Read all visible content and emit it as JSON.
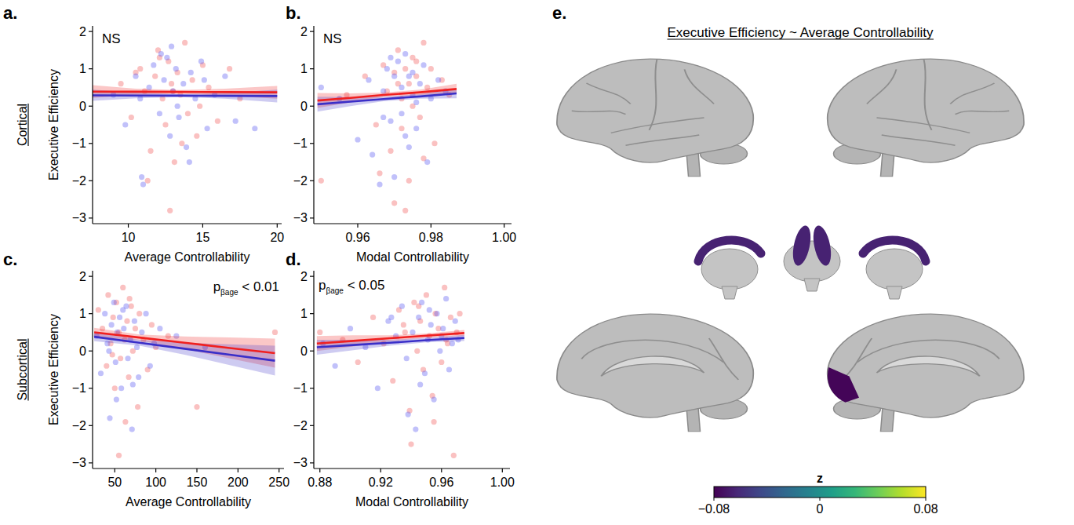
{
  "chart_data": [
    {
      "type": "scatter",
      "panel_label": "a.",
      "row_label": "Cortical",
      "x_label": "Average Controllability",
      "y_label": "Executive Efficiency",
      "annotation": {
        "text": "NS"
      },
      "xlim": [
        7.6,
        20.3
      ],
      "ylim": [
        -3.15,
        2.15
      ],
      "xticks": [
        10,
        15,
        20
      ],
      "yticks": [
        {
          "value": -3,
          "label": "−3"
        },
        {
          "value": -2,
          "label": "−2"
        },
        {
          "value": -1,
          "label": "−1"
        },
        0,
        1,
        2
      ],
      "series": [
        {
          "type": "scatter",
          "color": "#f25c5c",
          "x": [
            9.5,
            10.2,
            10.8,
            11.1,
            11.5,
            11.8,
            12.0,
            12.3,
            12.5,
            12.7,
            12.9,
            13.1,
            13.3,
            13.5,
            13.8,
            14.0,
            14.3,
            14.6,
            15.0,
            15.4,
            16.0,
            16.8,
            11.3,
            12.8,
            13.6,
            14.8,
            12.1,
            13.0,
            10.5,
            17.5
          ],
          "values": [
            0.6,
            -0.3,
            1.0,
            0.4,
            -1.2,
            0.8,
            1.5,
            0.2,
            -0.5,
            1.2,
            0.6,
            -1.5,
            0.9,
            0.3,
            1.7,
            -0.2,
            0.7,
            -0.8,
            1.1,
            0.5,
            -0.4,
            1.0,
            -2.0,
            -2.8,
            -1.0,
            0.0,
            1.3,
            0.4,
            0.9,
            0.2
          ]
        },
        {
          "type": "scatter",
          "color": "#5c5cf2",
          "x": [
            9.0,
            9.8,
            10.5,
            10.9,
            11.4,
            11.7,
            12.1,
            12.4,
            12.6,
            12.8,
            13.0,
            13.2,
            13.4,
            13.7,
            13.9,
            14.2,
            14.5,
            14.9,
            15.3,
            15.8,
            16.5,
            17.2,
            11.0,
            12.2,
            13.3,
            14.1,
            15.1,
            10.8,
            12.9,
            18.5
          ],
          "values": [
            0.3,
            -0.5,
            0.8,
            -1.9,
            0.5,
            1.1,
            -0.2,
            0.7,
            1.3,
            -0.8,
            0.4,
            1.0,
            -0.3,
            0.6,
            -1.1,
            0.9,
            0.2,
            1.2,
            -0.6,
            0.3,
            0.8,
            -0.4,
            -2.1,
            1.4,
            0.0,
            -1.5,
            0.7,
            0.2,
            1.6,
            -0.6
          ]
        },
        {
          "type": "line",
          "color": "#f02020",
          "x": [
            7.6,
            10.5,
            13.5,
            16.5,
            20.0
          ],
          "values": [
            0.39,
            0.385,
            0.38,
            0.375,
            0.37
          ],
          "ci_lower": [
            0.22,
            0.3,
            0.33,
            0.28,
            0.2
          ],
          "ci_upper": [
            0.56,
            0.47,
            0.43,
            0.47,
            0.54
          ]
        },
        {
          "type": "line",
          "color": "#3a2fc8",
          "x": [
            7.6,
            10.5,
            13.5,
            16.5,
            20.0
          ],
          "values": [
            0.29,
            0.285,
            0.28,
            0.275,
            0.27
          ],
          "ci_lower": [
            0.14,
            0.21,
            0.24,
            0.2,
            0.1
          ],
          "ci_upper": [
            0.44,
            0.36,
            0.32,
            0.35,
            0.44
          ]
        }
      ]
    },
    {
      "type": "scatter",
      "panel_label": "b.",
      "x_label": "Modal Controllability",
      "annotation": {
        "text": "NS"
      },
      "xlim": [
        0.948,
        1.002
      ],
      "ylim": [
        -3.15,
        2.15
      ],
      "xticks": [
        0.96,
        0.98,
        {
          "value": 1,
          "label": "1.00"
        }
      ],
      "yticks": [
        {
          "value": -3,
          "label": "−3"
        },
        {
          "value": -2,
          "label": "−2"
        },
        {
          "value": -1,
          "label": "−1"
        },
        0,
        1,
        2
      ],
      "series": [
        {
          "type": "scatter",
          "color": "#f25c5c",
          "x": [
            0.95,
            0.957,
            0.962,
            0.965,
            0.967,
            0.968,
            0.969,
            0.97,
            0.971,
            0.972,
            0.972,
            0.973,
            0.974,
            0.974,
            0.975,
            0.975,
            0.976,
            0.977,
            0.978,
            0.979,
            0.98,
            0.981,
            0.983,
            0.985,
            0.966,
            0.97,
            0.973,
            0.976,
            0.978,
            0.971
          ],
          "values": [
            -2.0,
            0.3,
            0.8,
            -0.5,
            1.1,
            0.4,
            -1.2,
            0.9,
            1.5,
            0.2,
            -0.6,
            1.0,
            0.6,
            -2.0,
            1.3,
            0.0,
            0.8,
            -0.3,
            1.7,
            0.5,
            1.0,
            -1.0,
            0.7,
            0.3,
            -1.8,
            -2.6,
            -2.8,
            1.2,
            -1.4,
            0.6
          ]
        },
        {
          "type": "scatter",
          "color": "#5c5cf2",
          "x": [
            0.95,
            0.955,
            0.96,
            0.963,
            0.966,
            0.967,
            0.968,
            0.969,
            0.97,
            0.971,
            0.972,
            0.972,
            0.973,
            0.974,
            0.975,
            0.975,
            0.976,
            0.977,
            0.978,
            0.979,
            0.98,
            0.982,
            0.984,
            0.964,
            0.969,
            0.973,
            0.976,
            0.97,
            0.974,
            0.967
          ],
          "values": [
            0.5,
            0.2,
            -0.9,
            0.7,
            -2.1,
            0.4,
            1.0,
            -0.4,
            0.8,
            1.2,
            -0.2,
            0.5,
            1.4,
            -1.1,
            0.3,
            0.9,
            -0.6,
            0.6,
            1.1,
            -1.5,
            0.2,
            0.7,
            0.4,
            -1.3,
            1.3,
            -0.8,
            0.1,
            -1.9,
            0.8,
            -0.3
          ]
        },
        {
          "type": "line",
          "color": "#f02020",
          "x": [
            0.949,
            0.958,
            0.967,
            0.977,
            0.987
          ],
          "values": [
            0.15,
            0.22,
            0.3,
            0.37,
            0.46
          ],
          "ci_lower": [
            -0.05,
            0.1,
            0.24,
            0.3,
            0.32
          ],
          "ci_upper": [
            0.35,
            0.34,
            0.36,
            0.44,
            0.6
          ]
        },
        {
          "type": "line",
          "color": "#3a2fc8",
          "x": [
            0.949,
            0.958,
            0.967,
            0.977,
            0.987
          ],
          "values": [
            0.05,
            0.12,
            0.19,
            0.26,
            0.34
          ],
          "ci_lower": [
            -0.15,
            0.0,
            0.13,
            0.2,
            0.21
          ],
          "ci_upper": [
            0.25,
            0.24,
            0.25,
            0.32,
            0.47
          ]
        }
      ]
    },
    {
      "type": "scatter",
      "panel_label": "c.",
      "row_label": "Subcortical",
      "x_label": "Average Controllability",
      "y_label": "Executive Efficiency",
      "annotation": {
        "text": "p",
        "subscript": "βage",
        "suffix": " < 0.01"
      },
      "xlim": [
        23,
        256
      ],
      "ylim": [
        -3.15,
        2.15
      ],
      "xticks": [
        50,
        100,
        150,
        200,
        250
      ],
      "yticks": [
        {
          "value": -3,
          "label": "−3"
        },
        {
          "value": -2,
          "label": "−2"
        },
        {
          "value": -1,
          "label": "−1"
        },
        0,
        1,
        2
      ],
      "series": [
        {
          "type": "scatter",
          "color": "#f25c5c",
          "x": [
            30,
            35,
            40,
            42,
            45,
            48,
            50,
            52,
            55,
            57,
            60,
            62,
            65,
            67,
            70,
            72,
            75,
            78,
            80,
            85,
            90,
            95,
            100,
            115,
            150,
            245,
            55,
            63,
            68,
            47
          ],
          "values": [
            1.1,
            0.6,
            -0.4,
            1.5,
            0.2,
            0.9,
            -1.0,
            1.3,
            0.5,
            -0.2,
            1.7,
            0.3,
            0.8,
            -0.7,
            1.2,
            0.0,
            0.6,
            -1.5,
            1.0,
            0.3,
            -0.5,
            0.7,
            0.1,
            0.4,
            -1.5,
            0.5,
            -2.8,
            -1.9,
            1.4,
            -0.1
          ]
        },
        {
          "type": "scatter",
          "color": "#5c5cf2",
          "x": [
            28,
            33,
            38,
            41,
            44,
            46,
            49,
            51,
            53,
            56,
            58,
            61,
            64,
            66,
            69,
            71,
            74,
            77,
            79,
            83,
            88,
            93,
            98,
            105,
            125,
            160,
            52,
            60,
            72,
            43
          ],
          "values": [
            0.4,
            -0.6,
            1.0,
            0.2,
            -1.8,
            0.7,
            1.3,
            -0.3,
            0.5,
            0.9,
            -1.0,
            0.6,
            1.2,
            -0.2,
            0.3,
            -2.1,
            0.8,
            0.1,
            -0.7,
            0.5,
            1.0,
            -0.4,
            0.2,
            0.6,
            0.4,
            0.1,
            -1.3,
            1.1,
            -0.9,
            0.0
          ]
        },
        {
          "type": "line",
          "color": "#f02020",
          "x": [
            25,
            80,
            135,
            190,
            245
          ],
          "values": [
            0.5,
            0.36,
            0.22,
            0.08,
            -0.06
          ],
          "ci_lower": [
            0.38,
            0.28,
            0.05,
            -0.2,
            -0.45
          ],
          "ci_upper": [
            0.62,
            0.44,
            0.39,
            0.36,
            0.33
          ]
        },
        {
          "type": "line",
          "color": "#3a2fc8",
          "x": [
            25,
            80,
            135,
            190,
            245
          ],
          "values": [
            0.38,
            0.22,
            0.06,
            -0.1,
            -0.26
          ],
          "ci_lower": [
            0.26,
            0.14,
            -0.1,
            -0.38,
            -0.66
          ],
          "ci_upper": [
            0.5,
            0.3,
            0.22,
            0.18,
            0.14
          ]
        }
      ]
    },
    {
      "type": "scatter",
      "panel_label": "d.",
      "x_label": "Modal Controllability",
      "annotation": {
        "text": "p",
        "subscript": "βage",
        "suffix": " < 0.05"
      },
      "xlim": [
        0.876,
        1.005
      ],
      "ylim": [
        -3.15,
        2.15
      ],
      "xticks": [
        0.88,
        0.92,
        0.96,
        {
          "value": 1,
          "label": "1.00"
        }
      ],
      "yticks": [
        {
          "value": -3,
          "label": "−3"
        },
        {
          "value": -2,
          "label": "−2"
        },
        {
          "value": -1,
          "label": "−1"
        },
        0,
        1,
        2
      ],
      "series": [
        {
          "type": "scatter",
          "color": "#f25c5c",
          "x": [
            0.88,
            0.895,
            0.905,
            0.915,
            0.922,
            0.928,
            0.932,
            0.936,
            0.939,
            0.942,
            0.944,
            0.946,
            0.948,
            0.95,
            0.952,
            0.954,
            0.956,
            0.958,
            0.96,
            0.962,
            0.964,
            0.966,
            0.968,
            0.97,
            0.94,
            0.955,
            0.945,
            0.963,
            0.935,
            0.972
          ],
          "values": [
            0.5,
            0.3,
            -0.3,
            0.9,
            0.2,
            -0.8,
            1.1,
            0.5,
            -1.6,
            1.3,
            0.0,
            0.8,
            -0.5,
            1.5,
            0.4,
            -1.2,
            1.0,
            0.6,
            -0.3,
            1.7,
            0.2,
            0.9,
            -2.8,
            0.5,
            -2.5,
            -1.9,
            1.2,
            0.3,
            0.7,
            1.0
          ]
        },
        {
          "type": "scatter",
          "color": "#5c5cf2",
          "x": [
            0.882,
            0.89,
            0.9,
            0.91,
            0.918,
            0.925,
            0.93,
            0.934,
            0.937,
            0.941,
            0.943,
            0.945,
            0.947,
            0.949,
            0.951,
            0.953,
            0.955,
            0.957,
            0.959,
            0.961,
            0.963,
            0.965,
            0.967,
            0.969,
            0.938,
            0.952,
            0.946,
            0.96,
            0.927,
            0.971
          ],
          "values": [
            0.2,
            -0.4,
            0.6,
            0.1,
            -1.0,
            0.8,
            0.4,
            1.2,
            -0.2,
            0.5,
            -2.1,
            0.9,
            1.3,
            -0.6,
            0.3,
            0.7,
            -1.3,
            1.0,
            0.0,
            0.6,
            1.4,
            -0.5,
            0.2,
            0.8,
            -1.7,
            1.1,
            -0.9,
            0.4,
            0.9,
            0.3
          ]
        },
        {
          "type": "line",
          "color": "#f02020",
          "x": [
            0.878,
            0.902,
            0.926,
            0.95,
            0.975
          ],
          "values": [
            0.2,
            0.27,
            0.34,
            0.41,
            0.48
          ],
          "ci_lower": [
            0.0,
            0.12,
            0.26,
            0.35,
            0.4
          ],
          "ci_upper": [
            0.4,
            0.42,
            0.42,
            0.47,
            0.56
          ]
        },
        {
          "type": "line",
          "color": "#3a2fc8",
          "x": [
            0.878,
            0.902,
            0.926,
            0.95,
            0.975
          ],
          "values": [
            0.1,
            0.16,
            0.22,
            0.29,
            0.35
          ],
          "ci_lower": [
            -0.1,
            0.02,
            0.14,
            0.23,
            0.27
          ],
          "ci_upper": [
            0.3,
            0.3,
            0.3,
            0.35,
            0.43
          ]
        }
      ]
    },
    {
      "type": "brain_map",
      "panel_label": "e.",
      "title": "Executive Efficiency ~ Average Controllability",
      "colorbar": {
        "label": "z",
        "range": [
          -0.08,
          0.08
        ],
        "ticks": [
          {
            "value": -0.08,
            "label": "−0.08"
          },
          0,
          0.08
        ]
      },
      "regions": [
        {
          "value": -0.065
        },
        {
          "value": -0.078
        }
      ]
    }
  ]
}
